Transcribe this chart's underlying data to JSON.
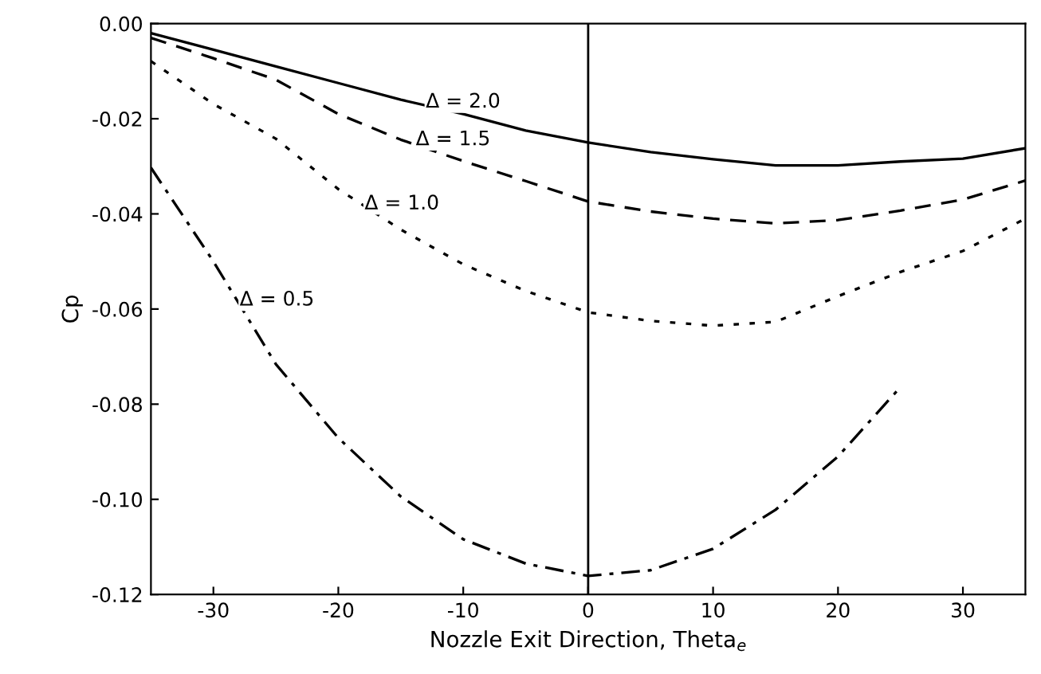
{
  "chart_data": {
    "type": "line",
    "xlabel": "Nozzle Exit Direction, Theta$_{e}$",
    "ylabel": "Cp",
    "xlim": [
      -35,
      35
    ],
    "ylim": [
      -0.12,
      0
    ],
    "xticks": [
      -30,
      -20,
      -10,
      0,
      10,
      20,
      30
    ],
    "yticks": [
      {
        "value": 0,
        "label": "0.00"
      },
      {
        "value": -0.02,
        "label": "-0.02"
      },
      {
        "value": -0.04,
        "label": "-0.04"
      },
      {
        "value": -0.06,
        "label": "-0.06"
      },
      {
        "value": -0.08,
        "label": "-0.08"
      },
      {
        "value": -0.1,
        "label": "-0.10"
      },
      {
        "value": -0.12,
        "label": "-0.12"
      }
    ],
    "grid": false,
    "legend": false,
    "x": [
      -35,
      -30,
      -25,
      -20,
      -15,
      -10,
      -5,
      0,
      5,
      10,
      15,
      20,
      25,
      30,
      35
    ],
    "series": [
      {
        "color": "#000000",
        "line_style": "solid",
        "values": [
          -0.002,
          -0.0055,
          -0.009,
          -0.0125,
          -0.016,
          -0.019,
          -0.0225,
          -0.025,
          -0.027,
          -0.0285,
          -0.0298,
          -0.0298,
          -0.029,
          -0.0284,
          -0.0262
        ]
      },
      {
        "color": "#000000",
        "line_style": "dashed",
        "values": [
          -0.003,
          -0.0073,
          -0.0118,
          -0.019,
          -0.0244,
          -0.0289,
          -0.0331,
          -0.0374,
          -0.0395,
          -0.041,
          -0.042,
          -0.0413,
          -0.0393,
          -0.037,
          -0.033
        ]
      },
      {
        "color": "#000000",
        "line_style": "dotted",
        "values": [
          -0.0079,
          -0.0169,
          -0.0242,
          -0.0348,
          -0.0433,
          -0.0506,
          -0.0562,
          -0.0607,
          -0.0625,
          -0.0635,
          -0.0627,
          -0.0573,
          -0.0522,
          -0.0478,
          -0.041
        ]
      },
      {
        "color": "#000000",
        "line_style": "dashdot",
        "values": [
          -0.0303,
          -0.05,
          -0.0716,
          -0.0871,
          -0.0994,
          -0.1084,
          -0.1135,
          -0.1161,
          -0.1149,
          -0.1104,
          -0.1022,
          -0.091,
          -0.0764,
          null,
          null
        ]
      }
    ],
    "ref_lines": [
      {
        "axis": "x",
        "value": 0,
        "color": "#000000"
      }
    ],
    "annotations": [
      {
        "text": "Δ = 2.0",
        "x": -13.0,
        "y": -0.0165
      },
      {
        "text": "Δ = 1.5",
        "x": -13.8,
        "y": -0.0244
      },
      {
        "text": "Δ = 1.0",
        "x": -17.9,
        "y": -0.0379
      },
      {
        "text": "Δ = 0.5",
        "x": -27.9,
        "y": -0.0581
      }
    ]
  }
}
